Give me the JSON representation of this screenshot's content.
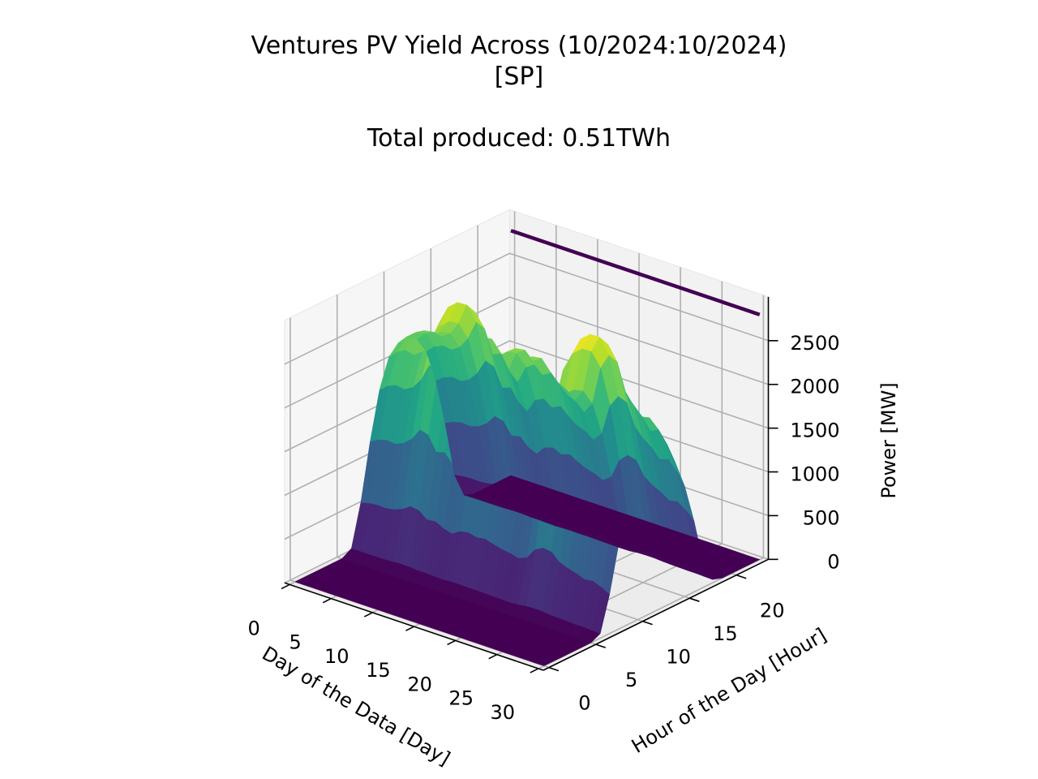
{
  "chart_data": {
    "type": "surface3d",
    "title": "Ventures PV Yield Across (10/2024:10/2024)",
    "title_line2": "[SP]",
    "subtitle": "Total produced: 0.51TWh",
    "xlabel": "Day of the Data [Day]",
    "ylabel": "Hour of the Day [Hour]",
    "zlabel": "Power [MW]",
    "x_ticks": [
      0,
      5,
      10,
      15,
      20,
      25,
      30
    ],
    "y_ticks": [
      0,
      5,
      10,
      15,
      20
    ],
    "z_ticks": [
      0,
      500,
      1000,
      1500,
      2000,
      2500
    ],
    "xlim": [
      0,
      30
    ],
    "ylim": [
      0,
      23
    ],
    "zlim": [
      0,
      3000
    ],
    "colormap": "viridis",
    "grid": true,
    "daily_peak_mw": [
      2150,
      2250,
      2300,
      2280,
      2350,
      2500,
      2750,
      2700,
      2400,
      2450,
      2250,
      2150,
      2380,
      2450,
      2350,
      2420,
      2300,
      2200,
      2150,
      2050,
      2200,
      2700,
      2900,
      2850,
      2500,
      2350,
      2250,
      2100,
      2150,
      2000,
      1800
    ],
    "hourly_profile_fraction": [
      0,
      0,
      0,
      0,
      0,
      0,
      0.03,
      0.25,
      0.55,
      0.8,
      0.95,
      1.0,
      1.0,
      0.97,
      0.88,
      0.7,
      0.45,
      0.15,
      0.02,
      0,
      0,
      0,
      0,
      0
    ],
    "constant_line": {
      "hour": 23,
      "value_mw": 2800,
      "color": "#440154"
    }
  }
}
